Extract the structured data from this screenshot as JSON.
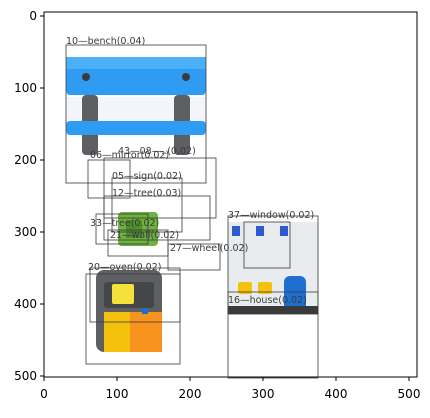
{
  "figure": {
    "x_ticks": [
      "0",
      "100",
      "200",
      "300",
      "400",
      "500"
    ],
    "y_ticks": [
      "0",
      "100",
      "200",
      "300",
      "400",
      "500"
    ]
  },
  "detections": [
    {
      "label": "10—bench(0.04)"
    },
    {
      "label": "06—mirror(0.02)"
    },
    {
      "label": "43—08—..(0.02)"
    },
    {
      "label": "05—sign(0.02)"
    },
    {
      "label": "12—tree(0.03)"
    },
    {
      "label": "33—tree(0.02)"
    },
    {
      "label": "21—wall(0.02)"
    },
    {
      "label": "27—wheel(0.02)"
    },
    {
      "label": "20—oven(0.02)"
    },
    {
      "label": "37—window(0.02)"
    },
    {
      "label": "16—house(0.02)"
    }
  ],
  "colors": {
    "bench_blue": "#2f9cf3",
    "bench_legs": "#5d5f63",
    "box_stroke": "#3a3a3a",
    "tree_green": "#6db33f",
    "kiosk_orange": "#f7931e",
    "kiosk_yellow": "#f4c20d",
    "house_blue": "#1f6fd1"
  }
}
